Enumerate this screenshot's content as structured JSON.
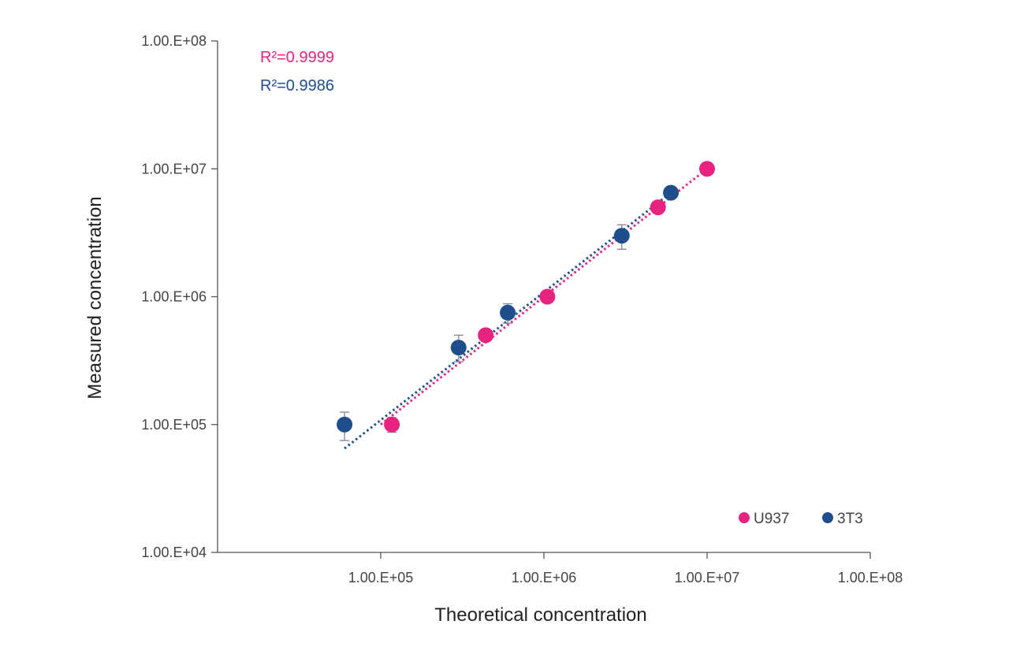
{
  "chart_data": {
    "type": "scatter",
    "xlabel": "Theoretical concentration",
    "ylabel": "Measured concentration",
    "xscale": "log",
    "yscale": "log",
    "xlim": [
      10000,
      100000000
    ],
    "ylim": [
      10000,
      100000000
    ],
    "x_ticks": [
      {
        "value": 100000,
        "label": "1.00.E+05"
      },
      {
        "value": 1000000,
        "label": "1.00.E+06"
      },
      {
        "value": 10000000,
        "label": "1.00.E+07"
      },
      {
        "value": 100000000,
        "label": "1.00.E+08"
      }
    ],
    "y_ticks": [
      {
        "value": 10000,
        "label": "1.00.E+04"
      },
      {
        "value": 100000,
        "label": "1.00.E+05"
      },
      {
        "value": 1000000,
        "label": "1.00.E+06"
      },
      {
        "value": 10000000,
        "label": "1.00.E+07"
      },
      {
        "value": 100000000,
        "label": "1.00.E+08"
      }
    ],
    "grid": false,
    "legend_position": "bottom-right",
    "series": [
      {
        "name": "U937",
        "color": "#e8237f",
        "r2_label": "R²=0.9999",
        "trendline": {
          "x_start": 100000,
          "y_start": 100000,
          "x_end": 10000000,
          "y_end": 10000000
        },
        "points": [
          {
            "x": 117000,
            "y": 100000,
            "err_low": 87000,
            "err_high": 113000
          },
          {
            "x": 440000,
            "y": 500000
          },
          {
            "x": 1050000,
            "y": 1000000
          },
          {
            "x": 5000000,
            "y": 5000000
          },
          {
            "x": 10000000,
            "y": 10000000
          }
        ]
      },
      {
        "name": "3T3",
        "color": "#1f4e8c",
        "r2_label": "R²=0.9986",
        "trendline": {
          "x_start": 60000,
          "y_start": 65000,
          "x_end": 6000000,
          "y_end": 6500000
        },
        "points": [
          {
            "x": 60000,
            "y": 100000,
            "err_low": 75000,
            "err_high": 125000
          },
          {
            "x": 300000,
            "y": 400000,
            "err_low": 310000,
            "err_high": 500000
          },
          {
            "x": 600000,
            "y": 750000,
            "err_low": 620000,
            "err_high": 880000
          },
          {
            "x": 3000000,
            "y": 3000000,
            "err_low": 2350000,
            "err_high": 3650000
          },
          {
            "x": 6000000,
            "y": 6500000
          }
        ]
      }
    ]
  }
}
